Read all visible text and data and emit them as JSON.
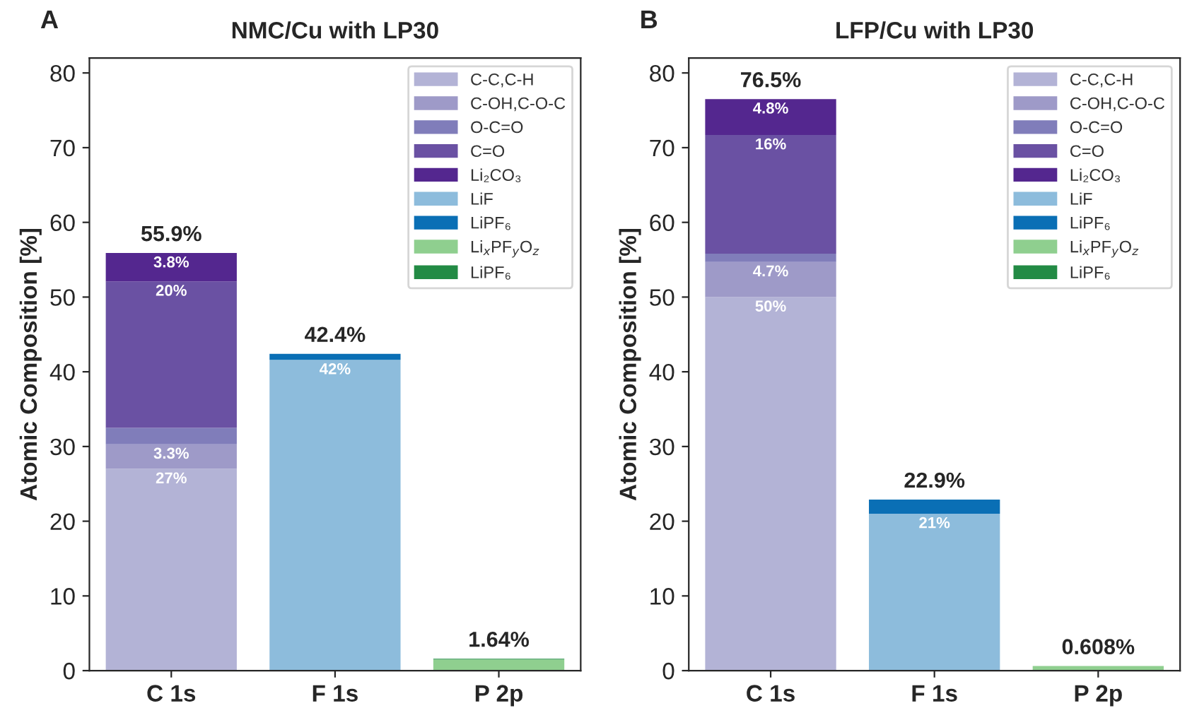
{
  "chart_data": [
    {
      "type": "bar",
      "title": "NMC/Cu with LP30",
      "ylabel": "Atomic Composition [%]",
      "annotations": [
        "A"
      ],
      "categories": [
        "C 1s",
        "F 1s",
        "P 2p"
      ],
      "stacked": true,
      "ylim": [
        0,
        82
      ],
      "yticks": [
        0,
        10,
        20,
        30,
        40,
        50,
        60,
        70,
        80
      ],
      "grid": false,
      "legend": "top right",
      "totals": [
        "55.9%",
        "42.4%",
        "1.64%"
      ],
      "series": [
        {
          "name": "C-C,C-H",
          "color": "#b3b3d6",
          "values": [
            27,
            null,
            null
          ],
          "value_labels": [
            "27%",
            null,
            null
          ]
        },
        {
          "name": "C-OH,C-O-C",
          "color": "#9e9ac8",
          "values": [
            3.3,
            null,
            null
          ],
          "value_labels": [
            "3.3%",
            null,
            null
          ]
        },
        {
          "name": "O-C=O",
          "color": "#807dba",
          "values": [
            2.2,
            null,
            null
          ]
        },
        {
          "name": "C=O",
          "color": "#6a51a3",
          "values": [
            19.6,
            null,
            null
          ],
          "value_labels": [
            "20%",
            null,
            null
          ]
        },
        {
          "name": "Li₂CO₃",
          "color": "#54278f",
          "values": [
            3.8,
            null,
            null
          ],
          "value_labels": [
            "3.8%",
            null,
            null
          ]
        },
        {
          "name": "LiF",
          "color": "#8dbcdc",
          "values": [
            null,
            41.6,
            null
          ],
          "value_labels": [
            null,
            "42%",
            null
          ]
        },
        {
          "name": "LiPF₆",
          "color": "#0a6fb5",
          "values": [
            null,
            0.8,
            null
          ]
        },
        {
          "name": "Li$_{x}$PF$_{y}$O$_{z}$",
          "color": "#8fcf8f",
          "values": [
            null,
            null,
            1.5
          ]
        },
        {
          "name": "LiPF₆",
          "color": "#238b45",
          "values": [
            null,
            null,
            0.1
          ]
        }
      ]
    },
    {
      "type": "bar",
      "title": "LFP/Cu with LP30",
      "ylabel": "Atomic Composition [%]",
      "annotations": [
        "B"
      ],
      "categories": [
        "C 1s",
        "F 1s",
        "P 2p"
      ],
      "stacked": true,
      "ylim": [
        0,
        82
      ],
      "yticks": [
        0,
        10,
        20,
        30,
        40,
        50,
        60,
        70,
        80
      ],
      "grid": false,
      "legend": "top right",
      "totals": [
        "76.5%",
        "22.9%",
        "0.608%"
      ],
      "series": [
        {
          "name": "C-C,C-H",
          "color": "#b3b3d6",
          "values": [
            50,
            null,
            null
          ],
          "value_labels": [
            "50%",
            null,
            null
          ]
        },
        {
          "name": "C-OH,C-O-C",
          "color": "#9e9ac8",
          "values": [
            4.7,
            null,
            null
          ],
          "value_labels": [
            "4.7%",
            null,
            null
          ]
        },
        {
          "name": "O-C=O",
          "color": "#807dba",
          "values": [
            1.1,
            null,
            null
          ]
        },
        {
          "name": "C=O",
          "color": "#6a51a3",
          "values": [
            15.9,
            null,
            null
          ],
          "value_labels": [
            "16%",
            null,
            null
          ]
        },
        {
          "name": "Li₂CO₃",
          "color": "#54278f",
          "values": [
            4.8,
            null,
            null
          ],
          "value_labels": [
            "4.8%",
            null,
            null
          ]
        },
        {
          "name": "LiF",
          "color": "#8dbcdc",
          "values": [
            null,
            21,
            null
          ],
          "value_labels": [
            null,
            "21%",
            null
          ]
        },
        {
          "name": "LiPF₆",
          "color": "#0a6fb5",
          "values": [
            null,
            1.9,
            null
          ]
        },
        {
          "name": "Li$_{x}$PF$_{y}$O$_{z}$",
          "color": "#8fcf8f",
          "values": [
            null,
            null,
            0.608
          ]
        },
        {
          "name": "LiPF₆",
          "color": "#238b45",
          "values": [
            null,
            null,
            null
          ]
        }
      ]
    }
  ]
}
